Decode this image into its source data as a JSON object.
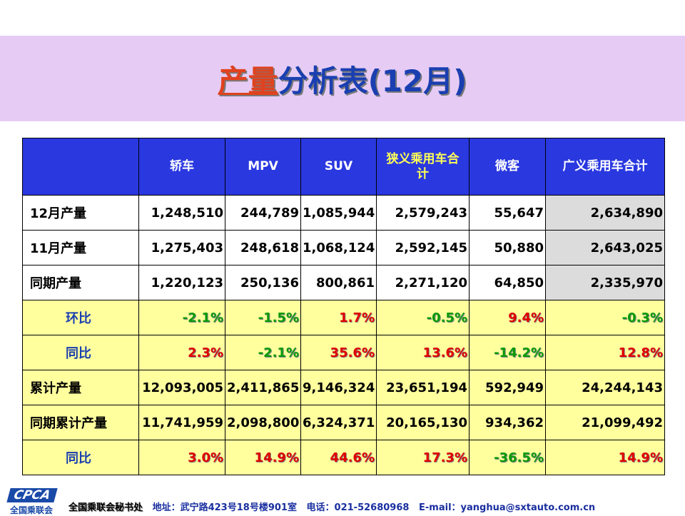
{
  "title": {
    "highlight": "产量",
    "rest": "分析表(12月)"
  },
  "table": {
    "headers": [
      "",
      "轿车",
      "MPV",
      "SUV",
      "狭义乘用车合计",
      "微客",
      "广义乘用车合计"
    ],
    "rows": [
      {
        "label": "12月产量",
        "type": "plain",
        "values": [
          "1,248,510",
          "244,789",
          "1,085,944",
          "2,579,243",
          "55,647",
          "2,634,890"
        ]
      },
      {
        "label": "11月产量",
        "type": "plain",
        "values": [
          "1,275,403",
          "248,618",
          "1,068,124",
          "2,592,145",
          "50,880",
          "2,643,025"
        ]
      },
      {
        "label": "同期产量",
        "type": "plain",
        "values": [
          "1,220,123",
          "250,136",
          "800,861",
          "2,271,120",
          "64,850",
          "2,335,970"
        ]
      },
      {
        "label": "环比",
        "type": "pct",
        "values": [
          "-2.1%",
          "-1.5%",
          "1.7%",
          "-0.5%",
          "9.4%",
          "-0.3%"
        ]
      },
      {
        "label": "同比",
        "type": "pct",
        "values": [
          "2.3%",
          "-2.1%",
          "35.6%",
          "13.6%",
          "-14.2%",
          "12.8%"
        ]
      },
      {
        "label": "累计产量",
        "type": "acc",
        "values": [
          "12,093,005",
          "2,411,865",
          "9,146,324",
          "23,651,194",
          "592,949",
          "24,244,143"
        ]
      },
      {
        "label": "同期累计产量",
        "type": "acc",
        "values": [
          "11,741,959",
          "2,098,800",
          "6,324,371",
          "20,165,130",
          "934,362",
          "21,099,492"
        ]
      },
      {
        "label": "同比",
        "type": "pct",
        "values": [
          "3.0%",
          "14.9%",
          "44.6%",
          "17.3%",
          "-36.5%",
          "14.9%"
        ]
      }
    ]
  },
  "footer": {
    "logo_text": "CPCA",
    "logo_cn": "全国乘联会",
    "org": "全国乘联会秘书处",
    "address": "地址：武宁路423号18号楼901室",
    "phone": "电话：021-52680968",
    "email": "E-mail：yanghua@sxtauto.com.cn"
  },
  "colors": {
    "header_bg": "#2a38e0",
    "pct_bg": "#ffff9e",
    "positive": "#e00000",
    "negative": "#0a9a0a",
    "title_band": "#e6ccf5"
  }
}
